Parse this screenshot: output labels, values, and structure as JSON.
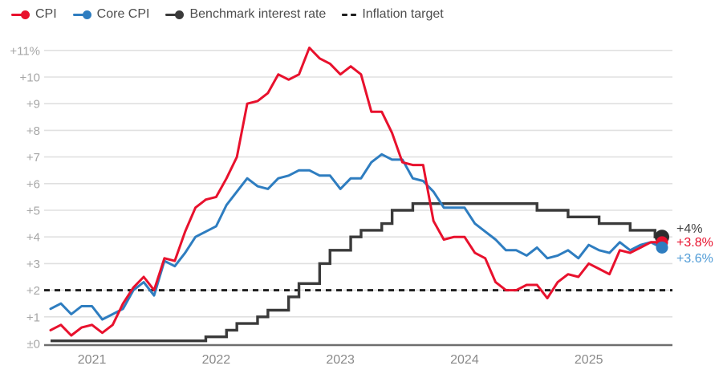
{
  "legend": [
    {
      "id": "cpi",
      "label": "CPI",
      "color": "#e8112d",
      "marker": "line-dot"
    },
    {
      "id": "core-cpi",
      "label": "Core CPI",
      "color": "#2e7dc0",
      "marker": "line-dot"
    },
    {
      "id": "benchmark",
      "label": "Benchmark interest rate",
      "color": "#3a3a3a",
      "marker": "line-dot"
    },
    {
      "id": "inflation-target",
      "label": "Inflation target",
      "color": "#1f1f1f",
      "marker": "dashes"
    }
  ],
  "chart_data": {
    "type": "line",
    "x_unit": "month",
    "categories": [
      "2020-09",
      "2020-10",
      "2020-11",
      "2020-12",
      "2021-01",
      "2021-02",
      "2021-03",
      "2021-04",
      "2021-05",
      "2021-06",
      "2021-07",
      "2021-08",
      "2021-09",
      "2021-10",
      "2021-11",
      "2021-12",
      "2022-01",
      "2022-02",
      "2022-03",
      "2022-04",
      "2022-05",
      "2022-06",
      "2022-07",
      "2022-08",
      "2022-09",
      "2022-10",
      "2022-11",
      "2022-12",
      "2023-01",
      "2023-02",
      "2023-03",
      "2023-04",
      "2023-05",
      "2023-06",
      "2023-07",
      "2023-08",
      "2023-09",
      "2023-10",
      "2023-11",
      "2023-12",
      "2024-01",
      "2024-02",
      "2024-03",
      "2024-04",
      "2024-05",
      "2024-06",
      "2024-07",
      "2024-08",
      "2024-09",
      "2024-10",
      "2024-11",
      "2024-12",
      "2025-01",
      "2025-02",
      "2025-03",
      "2025-04",
      "2025-05",
      "2025-06",
      "2025-07",
      "2025-08"
    ],
    "series": [
      {
        "id": "core-cpi",
        "name": "Core CPI",
        "color": "#2e7dc0",
        "style": "solid",
        "values": [
          1.3,
          1.5,
          1.1,
          1.4,
          1.4,
          0.9,
          1.1,
          1.3,
          2.0,
          2.3,
          1.8,
          3.1,
          2.9,
          3.4,
          4.0,
          4.2,
          4.4,
          5.2,
          5.7,
          6.2,
          5.9,
          5.8,
          6.2,
          6.3,
          6.5,
          6.5,
          6.3,
          6.3,
          5.8,
          6.2,
          6.2,
          6.8,
          7.1,
          6.9,
          6.9,
          6.2,
          6.1,
          5.7,
          5.1,
          5.1,
          5.1,
          4.5,
          4.2,
          3.9,
          3.5,
          3.5,
          3.3,
          3.6,
          3.2,
          3.3,
          3.5,
          3.2,
          3.7,
          3.5,
          3.4,
          3.8,
          3.5,
          3.7,
          3.8,
          3.6
        ]
      },
      {
        "id": "cpi",
        "name": "CPI",
        "color": "#e8112d",
        "style": "solid",
        "values": [
          0.5,
          0.7,
          0.3,
          0.6,
          0.7,
          0.4,
          0.7,
          1.5,
          2.1,
          2.5,
          2.0,
          3.2,
          3.1,
          4.2,
          5.1,
          5.4,
          5.5,
          6.2,
          7.0,
          9.0,
          9.1,
          9.4,
          10.1,
          9.9,
          10.1,
          11.1,
          10.7,
          10.5,
          10.1,
          10.4,
          10.1,
          8.7,
          8.7,
          7.9,
          6.8,
          6.7,
          6.7,
          4.6,
          3.9,
          4.0,
          4.0,
          3.4,
          3.2,
          2.3,
          2.0,
          2.0,
          2.2,
          2.2,
          1.7,
          2.3,
          2.6,
          2.5,
          3.0,
          2.8,
          2.6,
          3.5,
          3.4,
          3.6,
          3.8,
          3.8
        ]
      },
      {
        "id": "benchmark",
        "name": "Benchmark interest rate",
        "color": "#3a3a3a",
        "style": "step",
        "points": [
          {
            "t": 0,
            "v": 0.1
          },
          {
            "t": 15,
            "v": 0.25
          },
          {
            "t": 17,
            "v": 0.5
          },
          {
            "t": 18,
            "v": 0.75
          },
          {
            "t": 20,
            "v": 1.0
          },
          {
            "t": 21,
            "v": 1.25
          },
          {
            "t": 23,
            "v": 1.75
          },
          {
            "t": 24,
            "v": 2.25
          },
          {
            "t": 26,
            "v": 3.0
          },
          {
            "t": 27,
            "v": 3.5
          },
          {
            "t": 29,
            "v": 4.0
          },
          {
            "t": 30,
            "v": 4.25
          },
          {
            "t": 32,
            "v": 4.5
          },
          {
            "t": 33,
            "v": 5.0
          },
          {
            "t": 35,
            "v": 5.25
          },
          {
            "t": 47,
            "v": 5.0
          },
          {
            "t": 50,
            "v": 4.75
          },
          {
            "t": 53,
            "v": 4.5
          },
          {
            "t": 56,
            "v": 4.25
          },
          {
            "t": 58.4,
            "v": 4.0
          },
          {
            "t": 59,
            "v": 4.0
          }
        ]
      },
      {
        "id": "inflation-target",
        "name": "Inflation target",
        "color": "#1f1f1f",
        "style": "dashed-constant",
        "value": 2
      }
    ],
    "y_ticks": [
      {
        "v": 11,
        "label": "+11%"
      },
      {
        "v": 10,
        "label": "+10"
      },
      {
        "v": 9,
        "label": "+9"
      },
      {
        "v": 8,
        "label": "+8"
      },
      {
        "v": 7,
        "label": "+7"
      },
      {
        "v": 6,
        "label": "+6"
      },
      {
        "v": 5,
        "label": "+5"
      },
      {
        "v": 4,
        "label": "+4"
      },
      {
        "v": 3,
        "label": "+3"
      },
      {
        "v": 2,
        "label": "+2"
      },
      {
        "v": 1,
        "label": "+1"
      },
      {
        "v": 0,
        "label": "±0"
      }
    ],
    "x_ticks": [
      {
        "t": 4,
        "label": "2021"
      },
      {
        "t": 16,
        "label": "2022"
      },
      {
        "t": 28,
        "label": "2023"
      },
      {
        "t": 40,
        "label": "2024"
      },
      {
        "t": 52,
        "label": "2025"
      }
    ],
    "ylim": [
      0,
      11.3
    ],
    "grid": true,
    "legend_position": "top-left",
    "end_dots": [
      {
        "series": "benchmark",
        "v": 4.0,
        "color": "#2e2e2e",
        "r": 9
      },
      {
        "series": "cpi",
        "v": 3.8,
        "color": "#e8112d",
        "r": 7.5
      },
      {
        "series": "core-cpi",
        "v": 3.6,
        "color": "#2e7dc0",
        "r": 7.5
      }
    ],
    "end_labels": [
      {
        "id": "benchmark",
        "text": "+4%",
        "color": "#404040",
        "value": 4.0
      },
      {
        "id": "cpi",
        "text": "+3.8%",
        "color": "#e8112d",
        "value": 3.8
      },
      {
        "id": "core-cpi",
        "text": "+3.6%",
        "color": "#4f9bd6",
        "value": 3.6
      }
    ],
    "colors": {
      "grid": "#e0e0e0",
      "axis": "#6e6e6e",
      "y_label": "#a6a6a6",
      "x_label": "#8a8a8a"
    }
  }
}
